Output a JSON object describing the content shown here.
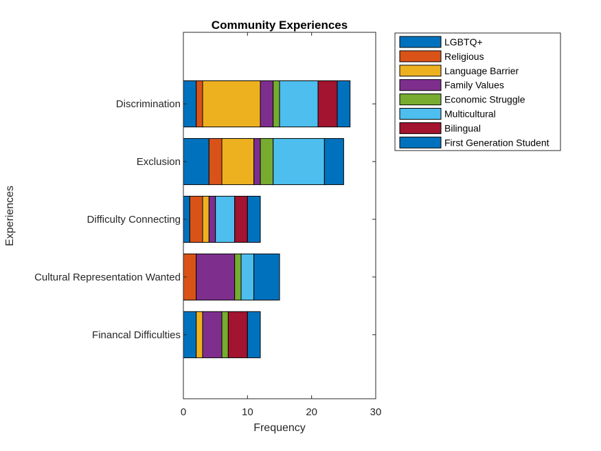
{
  "chart_data": {
    "type": "bar",
    "orientation": "horizontal",
    "stacked": true,
    "title": "Community Experiences",
    "xlabel": "Frequency",
    "ylabel": "Experiences",
    "xlim": [
      0,
      30
    ],
    "xticks": [
      0,
      10,
      20,
      30
    ],
    "grid": false,
    "legend_position": "outside-top-right",
    "categories": [
      "Discrimination",
      "Exclusion",
      "Difficulty Connecting",
      "Cultural Representation Wanted",
      "Financal Difficulties"
    ],
    "series": [
      {
        "name": "LGBTQ+",
        "color": "#0072BD",
        "values": [
          2,
          4,
          1,
          0,
          2
        ]
      },
      {
        "name": "Religious",
        "color": "#D95319",
        "values": [
          1,
          2,
          2,
          2,
          0
        ]
      },
      {
        "name": "Language Barrier",
        "color": "#EDB120",
        "values": [
          9,
          5,
          1,
          0,
          1
        ]
      },
      {
        "name": "Family Values",
        "color": "#7E2F8E",
        "values": [
          2,
          1,
          1,
          6,
          3
        ]
      },
      {
        "name": "Economic Struggle",
        "color": "#77AC30",
        "values": [
          1,
          2,
          0,
          1,
          1
        ]
      },
      {
        "name": "Multicultural",
        "color": "#4DBEEE",
        "values": [
          6,
          8,
          3,
          2,
          0
        ]
      },
      {
        "name": "Bilingual",
        "color": "#A2142F",
        "values": [
          3,
          0,
          2,
          0,
          3
        ]
      },
      {
        "name": "First Generation Student",
        "color": "#0072BD",
        "values": [
          2,
          3,
          2,
          4,
          2
        ]
      }
    ]
  }
}
